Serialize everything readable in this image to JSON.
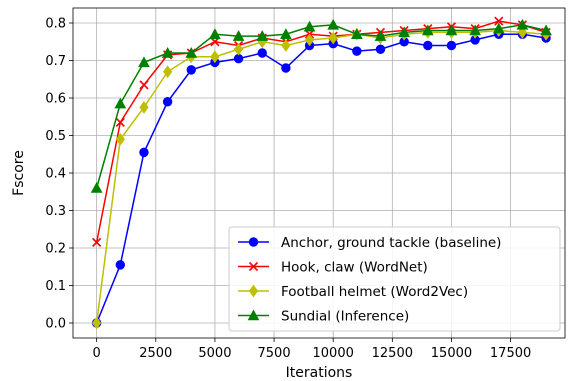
{
  "chart_data": {
    "type": "line",
    "xlabel": "Iterations",
    "ylabel": "Fscore",
    "xlim": [
      -1000,
      19800
    ],
    "ylim": [
      -0.04,
      0.84
    ],
    "xticks": [
      0,
      2500,
      5000,
      7500,
      10000,
      12500,
      15000,
      17500
    ],
    "xtick_labels": [
      "0",
      "2500",
      "5000",
      "7500",
      "10000",
      "12500",
      "15000",
      "17500"
    ],
    "yticks": [
      0.0,
      0.1,
      0.2,
      0.3,
      0.4,
      0.5,
      0.6,
      0.7,
      0.8
    ],
    "ytick_labels": [
      "0.0",
      "0.1",
      "0.2",
      "0.3",
      "0.4",
      "0.5",
      "0.6",
      "0.7",
      "0.8"
    ],
    "grid": true,
    "legend_position": "lower-right",
    "x": [
      0,
      1000,
      2000,
      3000,
      4000,
      5000,
      6000,
      7000,
      8000,
      9000,
      10000,
      11000,
      12000,
      13000,
      14000,
      15000,
      16000,
      17000,
      18000,
      19000
    ],
    "series": [
      {
        "name": "Anchor, ground tackle (baseline)",
        "color": "#0000ff",
        "marker": "circle",
        "values": [
          0.0,
          0.155,
          0.455,
          0.59,
          0.675,
          0.695,
          0.705,
          0.72,
          0.68,
          0.74,
          0.745,
          0.725,
          0.73,
          0.75,
          0.74,
          0.74,
          0.755,
          0.77,
          0.77,
          0.76
        ]
      },
      {
        "name": "Hook, claw (WordNet)",
        "color": "#ff0000",
        "marker": "x",
        "values": [
          0.215,
          0.535,
          0.635,
          0.715,
          0.72,
          0.75,
          0.74,
          0.76,
          0.75,
          0.77,
          0.765,
          0.77,
          0.775,
          0.78,
          0.785,
          0.79,
          0.785,
          0.805,
          0.795,
          0.775
        ]
      },
      {
        "name": "Football helmet (Word2Vec)",
        "color": "#bfbf00",
        "marker": "diamond",
        "values": [
          0.0,
          0.49,
          0.575,
          0.67,
          0.71,
          0.71,
          0.73,
          0.75,
          0.74,
          0.755,
          0.76,
          0.77,
          0.76,
          0.77,
          0.775,
          0.775,
          0.775,
          0.78,
          0.775,
          0.77
        ]
      },
      {
        "name": "Sundial (Inference)",
        "color": "#008000",
        "marker": "triangle",
        "values": [
          0.36,
          0.585,
          0.695,
          0.72,
          0.72,
          0.77,
          0.765,
          0.765,
          0.77,
          0.79,
          0.795,
          0.77,
          0.765,
          0.775,
          0.78,
          0.78,
          0.78,
          0.785,
          0.795,
          0.78
        ]
      }
    ]
  }
}
